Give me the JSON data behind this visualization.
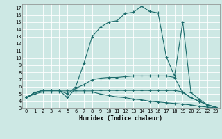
{
  "xlabel": "Humidex (Indice chaleur)",
  "bg_color": "#cde8e4",
  "line_color": "#1a6b6b",
  "grid_color": "#b0d8d0",
  "xlim": [
    -0.5,
    23.5
  ],
  "ylim": [
    3,
    17.5
  ],
  "yticks": [
    3,
    4,
    5,
    6,
    7,
    8,
    9,
    10,
    11,
    12,
    13,
    14,
    15,
    16,
    17
  ],
  "xticks": [
    0,
    1,
    2,
    3,
    4,
    5,
    6,
    7,
    8,
    9,
    10,
    11,
    12,
    13,
    14,
    15,
    16,
    17,
    18,
    19,
    20,
    21,
    22,
    23
  ],
  "curves": [
    {
      "x": [
        0,
        1,
        2,
        3,
        4,
        5,
        6,
        7,
        8,
        9,
        10,
        11,
        12,
        13,
        14,
        15,
        16,
        17,
        18,
        19,
        20,
        21,
        22,
        23
      ],
      "y": [
        4.5,
        5.2,
        5.5,
        5.5,
        5.5,
        5.0,
        6.0,
        9.3,
        13.0,
        14.3,
        15.0,
        15.2,
        16.2,
        16.4,
        17.2,
        16.5,
        16.3,
        10.2,
        7.5,
        15.0,
        5.2,
        4.3,
        3.5,
        3.2
      ]
    },
    {
      "x": [
        0,
        1,
        2,
        3,
        4,
        5,
        6,
        7,
        8,
        9,
        10,
        11,
        12,
        13,
        14,
        15,
        16,
        17,
        18,
        19,
        20,
        21,
        22,
        23
      ],
      "y": [
        4.5,
        5.2,
        5.5,
        5.5,
        5.5,
        4.5,
        5.8,
        6.3,
        7.0,
        7.2,
        7.3,
        7.3,
        7.4,
        7.5,
        7.5,
        7.5,
        7.5,
        7.5,
        7.3,
        5.2,
        4.5,
        4.0,
        3.5,
        3.2
      ]
    },
    {
      "x": [
        0,
        1,
        2,
        3,
        4,
        5,
        6,
        7,
        8,
        9,
        10,
        11,
        12,
        13,
        14,
        15,
        16,
        17,
        18,
        19,
        20,
        21,
        22,
        23
      ],
      "y": [
        4.5,
        5.2,
        5.5,
        5.5,
        5.5,
        5.5,
        5.5,
        5.5,
        5.5,
        5.5,
        5.5,
        5.5,
        5.5,
        5.5,
        5.5,
        5.5,
        5.5,
        5.5,
        5.5,
        5.3,
        4.5,
        4.0,
        3.5,
        3.2
      ]
    },
    {
      "x": [
        0,
        1,
        2,
        3,
        4,
        5,
        6,
        7,
        8,
        9,
        10,
        11,
        12,
        13,
        14,
        15,
        16,
        17,
        18,
        19,
        20,
        21,
        22,
        23
      ],
      "y": [
        4.5,
        5.0,
        5.3,
        5.3,
        5.3,
        5.3,
        5.3,
        5.3,
        5.3,
        5.0,
        4.8,
        4.6,
        4.5,
        4.3,
        4.2,
        4.0,
        3.9,
        3.8,
        3.7,
        3.6,
        3.5,
        3.3,
        3.2,
        3.1
      ]
    }
  ]
}
